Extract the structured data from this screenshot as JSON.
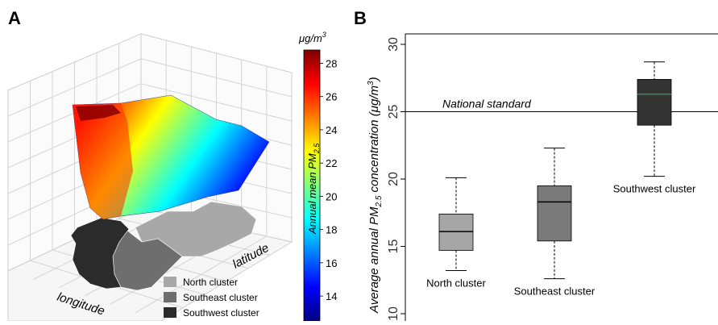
{
  "panel_a": {
    "letter": "A",
    "xlabel": "longitude",
    "ylabel": "latitude",
    "colorbar": {
      "unit_main": "μg/m",
      "unit_sup": "3",
      "label_main": "Annual mean PM",
      "label_sub": "2.5",
      "ticks": [
        14,
        16,
        18,
        20,
        22,
        24,
        26,
        28
      ],
      "range": [
        12.5,
        28.8
      ],
      "colors": [
        "#00007f",
        "#0000ff",
        "#007fff",
        "#00ffff",
        "#7fff7f",
        "#ffff00",
        "#ff7f00",
        "#ff0000",
        "#7f0000"
      ]
    },
    "legend": [
      {
        "label": "North cluster",
        "color": "#a8a8a8"
      },
      {
        "label": "Southeast cluster",
        "color": "#6e6e6e"
      },
      {
        "label": "Southwest cluster",
        "color": "#2b2b2b"
      }
    ]
  },
  "chart_data": {
    "type": "box",
    "letter": "B",
    "ylabel_main": "Average annual PM",
    "ylabel_sub": "2.5",
    "ylabel_mid": " concentration (μg/m",
    "ylabel_sup": "3",
    "ylabel_end": ")",
    "ylim": [
      10,
      30
    ],
    "yticks": [
      10,
      15,
      20,
      25,
      30
    ],
    "reference_line": {
      "value": 25,
      "label": "National standard"
    },
    "boxes": [
      {
        "name": "North cluster",
        "min": 13.2,
        "q1": 14.7,
        "median": 16.1,
        "q3": 17.4,
        "max": 20.1,
        "color": "#a6a6a6"
      },
      {
        "name": "Southeast cluster",
        "min": 12.6,
        "q1": 15.4,
        "median": 18.3,
        "q3": 19.5,
        "max": 22.3,
        "color": "#7a7a7a"
      },
      {
        "name": "Southwest cluster",
        "min": 20.2,
        "q1": 24.0,
        "median": 26.3,
        "q3": 27.4,
        "max": 28.7,
        "color": "#333333"
      }
    ]
  }
}
